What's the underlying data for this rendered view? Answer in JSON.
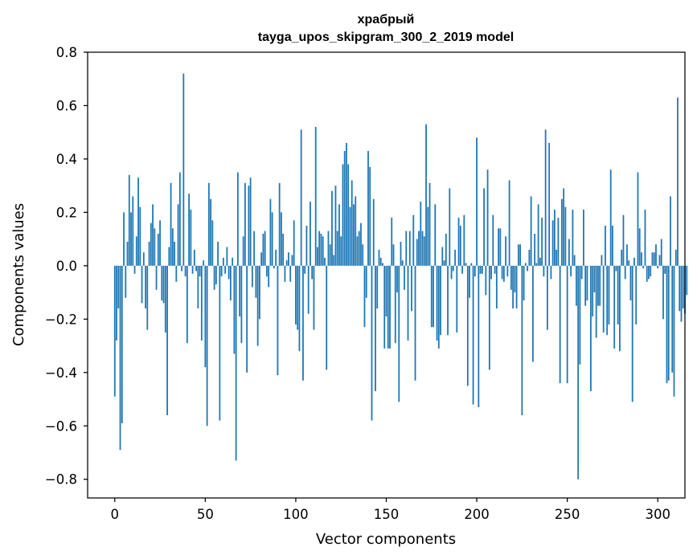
{
  "chart_data": {
    "type": "bar",
    "title": "храбрый",
    "subtitle": "tayga_upos_skipgram_300_2_2019 model",
    "xlabel": "Vector components",
    "ylabel": "Components values",
    "xlim": [
      -15,
      315
    ],
    "ylim": [
      -0.87,
      0.8
    ],
    "xticks": [
      0,
      50,
      100,
      150,
      200,
      250,
      300
    ],
    "xtick_labels": [
      "0",
      "50",
      "100",
      "150",
      "200",
      "250",
      "300"
    ],
    "yticks": [
      0.8,
      0.6,
      0.4,
      0.2,
      0.0,
      -0.2,
      -0.4,
      -0.6,
      -0.8
    ],
    "ytick_labels": [
      "0.8",
      "0.6",
      "0.4",
      "0.2",
      "0.0",
      "−0.2",
      "−0.4",
      "−0.6",
      "−0.8"
    ],
    "grid": false,
    "bar_color": "#1f77b4",
    "values": [
      -0.49,
      -0.28,
      -0.16,
      -0.69,
      -0.59,
      0.2,
      -0.12,
      0.09,
      0.34,
      0.2,
      0.26,
      -0.03,
      0.11,
      0.33,
      0.22,
      -0.14,
      0.05,
      -0.16,
      -0.24,
      0.09,
      0.16,
      0.23,
      0.14,
      -0.09,
      0.12,
      0.17,
      -0.13,
      -0.14,
      -0.25,
      -0.56,
      0.07,
      0.31,
      0.14,
      0.09,
      -0.06,
      0.23,
      0.35,
      -0.02,
      0.72,
      -0.04,
      -0.29,
      0.27,
      0.21,
      -0.03,
      0.06,
      -0.02,
      -0.16,
      -0.04,
      -0.28,
      0.02,
      -0.38,
      -0.6,
      0.31,
      0.25,
      0.17,
      -0.09,
      -0.07,
      0.09,
      -0.58,
      -0.04,
      0.03,
      -0.03,
      0.07,
      -0.05,
      -0.13,
      0.03,
      -0.33,
      -0.73,
      0.35,
      -0.19,
      -0.29,
      0.11,
      0.31,
      -0.4,
      0.3,
      0.33,
      -0.08,
      0.13,
      -0.12,
      -0.3,
      -0.2,
      0.05,
      0.12,
      0.13,
      -0.04,
      -0.08,
      0.25,
      0.2,
      -0.01,
      0.06,
      -0.41,
      0.31,
      0.2,
      0.12,
      -0.06,
      0.02,
      0.05,
      -0.06,
      0.04,
      0.17,
      -0.22,
      -0.24,
      -0.32,
      0.51,
      -0.43,
      -0.03,
      0.15,
      -0.18,
      0.24,
      -0.05,
      -0.24,
      0.52,
      0.07,
      0.13,
      0.12,
      0.11,
      0.03,
      -0.39,
      0.13,
      0.08,
      0.28,
      0.04,
      0.3,
      0.13,
      0.23,
      0.11,
      0.38,
      0.43,
      0.46,
      0.38,
      0.22,
      0.32,
      0.23,
      0.26,
      0.11,
      0.13,
      0.16,
      0.08,
      -0.23,
      -0.12,
      0.43,
      0.37,
      -0.58,
      0.25,
      -0.47,
      -0.16,
      0.06,
      0.03,
      0.01,
      -0.31,
      -0.19,
      -0.31,
      -0.31,
      0.18,
      0.08,
      -0.29,
      -0.1,
      -0.51,
      0.09,
      0.02,
      -0.09,
      0.13,
      -0.28,
      0.13,
      -0.17,
      0.19,
      -0.43,
      0.1,
      0.13,
      0.24,
      0.13,
      0.11,
      0.53,
      0.22,
      0.31,
      -0.23,
      -0.23,
      0.23,
      -0.28,
      -0.31,
      -0.26,
      0.07,
      0.02,
      0.12,
      -0.26,
      0.29,
      -0.05,
      -0.02,
      0.06,
      -0.25,
      0.18,
      0.15,
      -0.03,
      0.19,
      0.01,
      -0.45,
      -0.12,
      0.01,
      -0.52,
      -0.04,
      0.48,
      -0.53,
      -0.03,
      -0.03,
      0.29,
      -0.11,
      0.36,
      -0.39,
      -0.05,
      0.19,
      -0.03,
      -0.16,
      0.14,
      0.14,
      -0.05,
      -0.06,
      0.11,
      -0.04,
      0.32,
      -0.09,
      -0.16,
      -0.1,
      -0.16,
      0.08,
      0.08,
      -0.56,
      -0.13,
      0.01,
      -0.02,
      0.06,
      0.26,
      -0.36,
      0.12,
      0.01,
      0.23,
      0.03,
      0.18,
      -0.04,
      0.51,
      -0.24,
      0.46,
      -0.05,
      0.17,
      0.21,
      0.06,
      0.18,
      -0.44,
      0.25,
      0.29,
      0.22,
      -0.44,
      0.1,
      -0.04,
      0.21,
      0.04,
      -0.15,
      -0.8,
      -0.37,
      -0.05,
      0.21,
      -0.15,
      -0.13,
      0.0,
      -0.47,
      -0.19,
      -0.1,
      -0.27,
      -0.15,
      -0.15,
      0.04,
      -0.25,
      0.15,
      -0.26,
      -0.22,
      0.36,
      0.15,
      -0.31,
      -0.02,
      -0.22,
      -0.32,
      0.06,
      0.19,
      -0.05,
      0.08,
      0.02,
      -0.13,
      -0.51,
      0.03,
      -0.22,
      0.35,
      0.14,
      0.05,
      -0.01,
      0.21,
      -0.06,
      -0.05,
      -0.04,
      0.05,
      0.05,
      0.08,
      -0.01,
      0.04,
      0.1,
      -0.2,
      -0.03,
      -0.44,
      -0.43,
      0.26,
      -0.4,
      -0.49,
      0.06,
      0.63,
      -0.17,
      -0.21,
      -0.16,
      -0.18,
      -0.11
    ]
  }
}
